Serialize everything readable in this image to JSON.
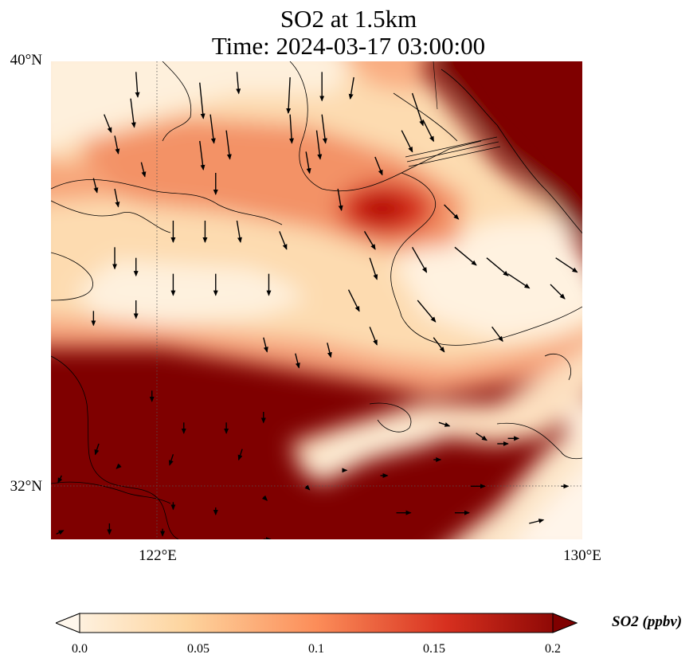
{
  "title": {
    "line1": "SO2 at 1.5km",
    "line2": "Time: 2024-03-17 03:00:00"
  },
  "map": {
    "extent": {
      "lon": [
        120,
        130
      ],
      "lat": [
        31,
        40
      ]
    },
    "lat_ticks": [
      {
        "value": 40,
        "label": "40°N"
      },
      {
        "value": 32,
        "label": "32°N"
      }
    ],
    "lon_ticks": [
      {
        "value": 122,
        "label": "122°E"
      },
      {
        "value": 130,
        "label": "130°E"
      }
    ],
    "gridlines": "dotted at 122°E and 32°N",
    "field": "SO2 concentration (ppbv) with wind vectors"
  },
  "colorbar": {
    "label": "SO2 (ppbv)",
    "min": 0.0,
    "max": 0.2,
    "extend": "both",
    "colormap": "OrRd",
    "ticks": [
      {
        "value": 0.0,
        "label": "0.0"
      },
      {
        "value": 0.05,
        "label": "0.05"
      },
      {
        "value": 0.1,
        "label": "0.1"
      },
      {
        "value": 0.15,
        "label": "0.15"
      },
      {
        "value": 0.2,
        "label": "0.2"
      }
    ],
    "colors": [
      "#fff7ec",
      "#fdd49e",
      "#fc8d59",
      "#d7301f",
      "#7f0000"
    ]
  },
  "vectors": [
    {
      "lon": 121.6,
      "lat": 39.8,
      "u": 0.05,
      "v": -0.7
    },
    {
      "lon": 121.0,
      "lat": 39.0,
      "u": 0.2,
      "v": -0.5
    },
    {
      "lon": 121.5,
      "lat": 39.3,
      "u": 0.1,
      "v": -0.8
    },
    {
      "lon": 121.2,
      "lat": 38.6,
      "u": 0.1,
      "v": -0.5
    },
    {
      "lon": 122.8,
      "lat": 39.6,
      "u": 0.1,
      "v": -1.0
    },
    {
      "lon": 123.5,
      "lat": 39.8,
      "u": 0.05,
      "v": -0.6
    },
    {
      "lon": 124.5,
      "lat": 39.7,
      "u": -0.05,
      "v": -1.0
    },
    {
      "lon": 125.1,
      "lat": 39.8,
      "u": 0.0,
      "v": -0.8
    },
    {
      "lon": 123.0,
      "lat": 39.0,
      "u": 0.1,
      "v": -0.8
    },
    {
      "lon": 123.3,
      "lat": 38.7,
      "u": 0.1,
      "v": -0.8
    },
    {
      "lon": 122.8,
      "lat": 38.5,
      "u": 0.1,
      "v": -0.8
    },
    {
      "lon": 124.5,
      "lat": 39.0,
      "u": 0.05,
      "v": -0.8
    },
    {
      "lon": 125.1,
      "lat": 39.0,
      "u": 0.1,
      "v": -0.8
    },
    {
      "lon": 121.7,
      "lat": 38.1,
      "u": 0.1,
      "v": -0.4
    },
    {
      "lon": 120.8,
      "lat": 37.8,
      "u": 0.1,
      "v": -0.4
    },
    {
      "lon": 121.2,
      "lat": 37.6,
      "u": 0.1,
      "v": -0.5
    },
    {
      "lon": 123.1,
      "lat": 37.9,
      "u": 0.0,
      "v": -0.6
    },
    {
      "lon": 124.8,
      "lat": 38.3,
      "u": 0.1,
      "v": -0.6
    },
    {
      "lon": 125.0,
      "lat": 38.7,
      "u": 0.1,
      "v": -0.8
    },
    {
      "lon": 126.1,
      "lat": 38.2,
      "u": 0.2,
      "v": -0.5
    },
    {
      "lon": 125.7,
      "lat": 39.7,
      "u": -0.1,
      "v": -0.6
    },
    {
      "lon": 126.8,
      "lat": 39.4,
      "u": 0.3,
      "v": -0.9
    },
    {
      "lon": 126.6,
      "lat": 38.7,
      "u": 0.3,
      "v": -0.6
    },
    {
      "lon": 127.0,
      "lat": 38.9,
      "u": 0.3,
      "v": -0.6
    },
    {
      "lon": 125.4,
      "lat": 37.6,
      "u": 0.1,
      "v": -0.6
    },
    {
      "lon": 122.3,
      "lat": 37.0,
      "u": 0.0,
      "v": -0.6
    },
    {
      "lon": 122.9,
      "lat": 37.0,
      "u": 0.0,
      "v": -0.6
    },
    {
      "lon": 123.5,
      "lat": 37.0,
      "u": 0.1,
      "v": -0.6
    },
    {
      "lon": 124.3,
      "lat": 36.8,
      "u": 0.2,
      "v": -0.5
    },
    {
      "lon": 121.2,
      "lat": 36.5,
      "u": 0.0,
      "v": -0.6
    },
    {
      "lon": 121.6,
      "lat": 36.3,
      "u": 0.0,
      "v": -0.5
    },
    {
      "lon": 122.3,
      "lat": 36.0,
      "u": 0.0,
      "v": -0.6
    },
    {
      "lon": 123.1,
      "lat": 36.0,
      "u": 0.0,
      "v": -0.6
    },
    {
      "lon": 124.1,
      "lat": 36.0,
      "u": 0.0,
      "v": -0.6
    },
    {
      "lon": 125.9,
      "lat": 36.8,
      "u": 0.3,
      "v": -0.5
    },
    {
      "lon": 126.0,
      "lat": 36.3,
      "u": 0.2,
      "v": -0.6
    },
    {
      "lon": 126.8,
      "lat": 36.5,
      "u": 0.4,
      "v": -0.7
    },
    {
      "lon": 127.4,
      "lat": 37.3,
      "u": 0.4,
      "v": -0.4
    },
    {
      "lon": 127.6,
      "lat": 36.5,
      "u": 0.6,
      "v": -0.5
    },
    {
      "lon": 128.2,
      "lat": 36.3,
      "u": 0.6,
      "v": -0.5
    },
    {
      "lon": 128.6,
      "lat": 36.0,
      "u": 0.6,
      "v": -0.4
    },
    {
      "lon": 129.5,
      "lat": 36.3,
      "u": 0.6,
      "v": -0.4
    },
    {
      "lon": 129.4,
      "lat": 35.8,
      "u": 0.4,
      "v": -0.4
    },
    {
      "lon": 120.8,
      "lat": 35.3,
      "u": 0.0,
      "v": -0.4
    },
    {
      "lon": 121.6,
      "lat": 35.5,
      "u": 0.0,
      "v": -0.5
    },
    {
      "lon": 125.6,
      "lat": 35.7,
      "u": 0.3,
      "v": -0.6
    },
    {
      "lon": 126.0,
      "lat": 35.0,
      "u": 0.2,
      "v": -0.5
    },
    {
      "lon": 126.9,
      "lat": 35.5,
      "u": 0.5,
      "v": -0.6
    },
    {
      "lon": 127.2,
      "lat": 34.8,
      "u": 0.3,
      "v": -0.4
    },
    {
      "lon": 128.3,
      "lat": 35.0,
      "u": 0.3,
      "v": -0.4
    },
    {
      "lon": 124.6,
      "lat": 34.5,
      "u": 0.1,
      "v": -0.4
    },
    {
      "lon": 124.0,
      "lat": 34.8,
      "u": 0.1,
      "v": -0.4
    },
    {
      "lon": 125.2,
      "lat": 34.7,
      "u": 0.1,
      "v": -0.4
    },
    {
      "lon": 121.9,
      "lat": 33.8,
      "u": 0.0,
      "v": -0.3
    },
    {
      "lon": 122.5,
      "lat": 33.2,
      "u": 0.0,
      "v": -0.3
    },
    {
      "lon": 123.3,
      "lat": 33.2,
      "u": 0.0,
      "v": -0.3
    },
    {
      "lon": 124.0,
      "lat": 33.4,
      "u": 0.0,
      "v": -0.3
    },
    {
      "lon": 120.9,
      "lat": 32.8,
      "u": -0.1,
      "v": -0.3
    },
    {
      "lon": 122.3,
      "lat": 32.6,
      "u": -0.1,
      "v": -0.3
    },
    {
      "lon": 123.6,
      "lat": 32.7,
      "u": -0.1,
      "v": -0.3
    },
    {
      "lon": 121.3,
      "lat": 32.4,
      "u": -0.1,
      "v": -0.1
    },
    {
      "lon": 120.2,
      "lat": 32.2,
      "u": -0.1,
      "v": -0.2
    },
    {
      "lon": 122.3,
      "lat": 31.7,
      "u": 0.0,
      "v": -0.2
    },
    {
      "lon": 121.1,
      "lat": 31.3,
      "u": 0.0,
      "v": -0.3
    },
    {
      "lon": 122.1,
      "lat": 31.2,
      "u": 0.0,
      "v": -0.2
    },
    {
      "lon": 123.1,
      "lat": 31.6,
      "u": 0.0,
      "v": -0.2
    },
    {
      "lon": 124.0,
      "lat": 31.8,
      "u": 0.1,
      "v": -0.1
    },
    {
      "lon": 124.8,
      "lat": 32.0,
      "u": 0.1,
      "v": -0.1
    },
    {
      "lon": 125.5,
      "lat": 32.3,
      "u": 0.1,
      "v": 0.0
    },
    {
      "lon": 126.2,
      "lat": 32.2,
      "u": 0.2,
      "v": 0.0
    },
    {
      "lon": 127.2,
      "lat": 32.5,
      "u": 0.2,
      "v": 0.0
    },
    {
      "lon": 127.3,
      "lat": 33.2,
      "u": 0.3,
      "v": -0.1
    },
    {
      "lon": 128.0,
      "lat": 33.0,
      "u": 0.3,
      "v": -0.2
    },
    {
      "lon": 128.6,
      "lat": 32.9,
      "u": 0.3,
      "v": 0.0
    },
    {
      "lon": 128.4,
      "lat": 32.8,
      "u": 0.3,
      "v": 0.0
    },
    {
      "lon": 127.9,
      "lat": 32.0,
      "u": 0.4,
      "v": 0.0
    },
    {
      "lon": 127.6,
      "lat": 31.5,
      "u": 0.4,
      "v": 0.0
    },
    {
      "lon": 126.5,
      "lat": 31.5,
      "u": 0.4,
      "v": 0.0
    },
    {
      "lon": 124.0,
      "lat": 31.0,
      "u": 0.2,
      "v": 0.0
    },
    {
      "lon": 129.6,
      "lat": 32.0,
      "u": 0.2,
      "v": 0.0
    },
    {
      "lon": 129.0,
      "lat": 31.3,
      "u": 0.4,
      "v": 0.1
    },
    {
      "lon": 120.1,
      "lat": 31.1,
      "u": 0.2,
      "v": 0.1
    }
  ]
}
